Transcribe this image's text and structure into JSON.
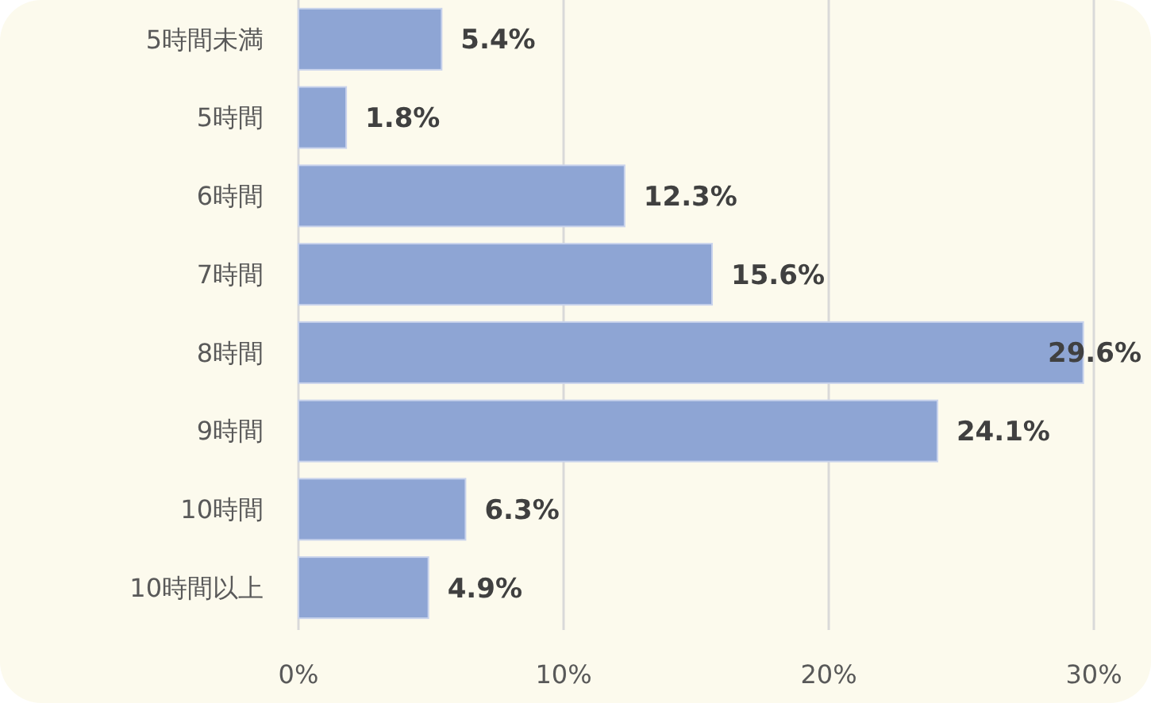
{
  "chart_data": {
    "type": "bar",
    "orientation": "horizontal",
    "categories": [
      "5時間未満",
      "5時間",
      "6時間",
      "7時間",
      "8時間",
      "9時間",
      "10時間",
      "10時間以上"
    ],
    "values": [
      5.4,
      1.8,
      12.3,
      15.6,
      29.6,
      24.1,
      6.3,
      4.9
    ],
    "color": "#8ea5d4",
    "value_labels": [
      "5.4%",
      "1.8%",
      "12.3%",
      "15.6%",
      "29.6%",
      "24.1%",
      "6.3%",
      "4.9%"
    ],
    "xlim": [
      0,
      30
    ],
    "xticks": [
      {
        "value": 0,
        "label": "0%"
      },
      {
        "value": 10,
        "label": "10%"
      },
      {
        "value": 20,
        "label": "20%"
      },
      {
        "value": 30,
        "label": "30%"
      }
    ],
    "grid": "x"
  }
}
